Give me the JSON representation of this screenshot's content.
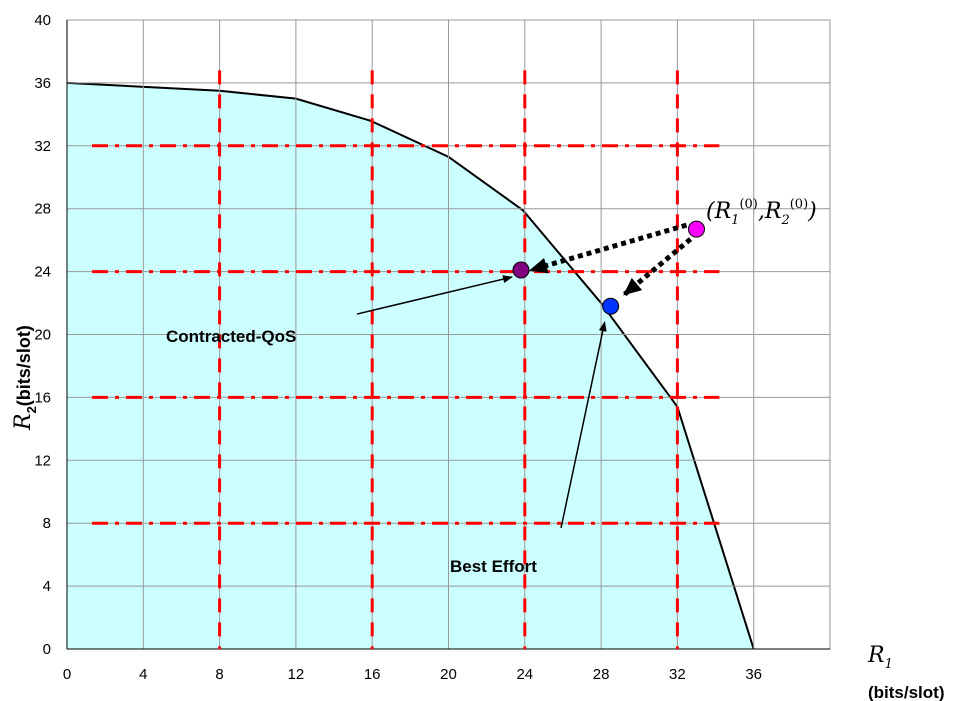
{
  "chart_data": {
    "type": "area",
    "xlabel": {
      "symbol": "R",
      "sub": "1",
      "unit": "(bits/slot)"
    },
    "ylabel": {
      "symbol": "R",
      "sub": "2",
      "unit": "(bits/slot)"
    },
    "xlim": [
      0,
      40
    ],
    "ylim": [
      0,
      40
    ],
    "x_ticks": [
      0,
      4,
      8,
      12,
      16,
      20,
      24,
      28,
      32,
      36
    ],
    "y_ticks": [
      0,
      4,
      8,
      12,
      16,
      20,
      24,
      28,
      32,
      36,
      40
    ],
    "grid": true,
    "region": {
      "fill": "#ccffff",
      "x": [
        0,
        8,
        12,
        15.9,
        20,
        23.9,
        28,
        32,
        36
      ],
      "y": [
        36,
        35.5,
        35,
        33.6,
        31.3,
        27.9,
        22,
        15.4,
        0
      ]
    },
    "quantization_grid": {
      "color": "#ff0000",
      "vertical": [
        8,
        16,
        24,
        32
      ],
      "horizontal": [
        32,
        24,
        16,
        8
      ]
    },
    "points": [
      {
        "name": "initial",
        "x": 33,
        "y": 26.7,
        "color": "#ff00ff"
      },
      {
        "name": "contracted_qos",
        "x": 23.8,
        "y": 24.1,
        "color": "#800080"
      },
      {
        "name": "best_effort",
        "x": 28.5,
        "y": 21.8,
        "color": "#0033ff"
      }
    ],
    "annotations": [
      {
        "text": "Contracted-QoS",
        "x": 10.5,
        "y": 19.5
      },
      {
        "text": "Best Effort",
        "x": 20.2,
        "y": 5.5
      }
    ],
    "point_label": {
      "r1": "R",
      "r1_sub": "1",
      "r1_sup": "(0)",
      "r2": "R",
      "r2_sub": "2",
      "r2_sup": "(0)"
    }
  }
}
